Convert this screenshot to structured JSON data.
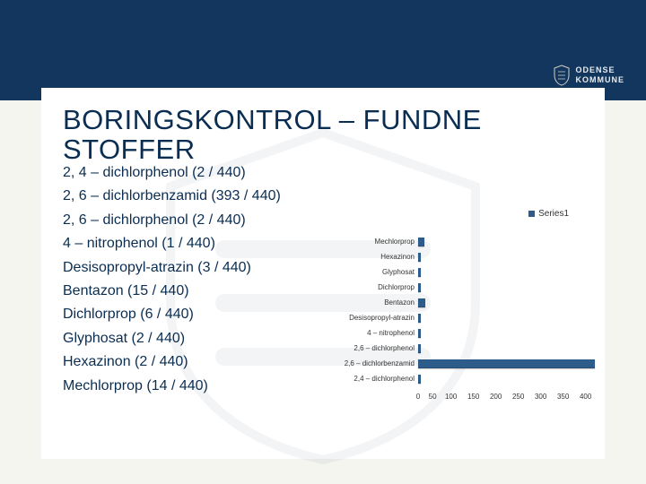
{
  "title": "BORINGSKONTROL – FUNDNE STOFFER",
  "logo": {
    "line1": "ODENSE",
    "line2": "KOMMUNE"
  },
  "items": [
    "2, 4 – dichlorphenol (2 / 440)",
    "2, 6 – dichlorbenzamid (393 / 440)",
    "2, 6 – dichlorphenol (2 / 440)",
    "4 – nitrophenol (1 / 440)",
    "Desisopropyl-atrazin (3 / 440)",
    "Bentazon (15 / 440)",
    "Dichlorprop (6 / 440)",
    "Glyphosat (2 / 440)",
    "Hexazinon (2 / 440)",
    "Mechlorprop (14 / 440)"
  ],
  "chart": {
    "legend": "Series1",
    "bar_color": "#2e5c8a",
    "xmax": 400,
    "xtick_step": 50,
    "categories": [
      "Mechlorprop",
      "Hexazinon",
      "Glyphosat",
      "Dichlorprop",
      "Bentazon",
      "Desisopropyl-atrazin",
      "4 – nitrophenol",
      "2,6 – dichlorphenol",
      "2,6 – dichlorbenzamid",
      "2,4 – dichlorphenol"
    ],
    "values": [
      14,
      2,
      2,
      6,
      15,
      3,
      1,
      2,
      393,
      2
    ]
  },
  "colors": {
    "dark_blue": "#13365e",
    "text_blue": "#0a2d52",
    "page_bg": "#f5f5f0",
    "content_bg": "#ffffff"
  }
}
